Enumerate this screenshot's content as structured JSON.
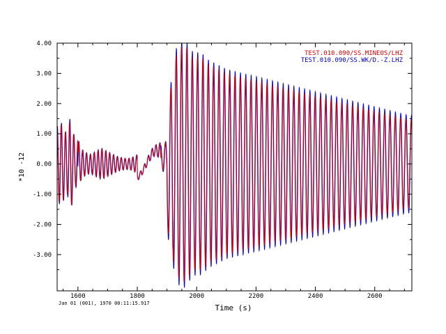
{
  "chart_data": {
    "type": "line",
    "title": "",
    "xlabel": "Time (s)",
    "ylabel": "*10 -12",
    "xlim": [
      1530,
      2725
    ],
    "ylim": [
      -4.2,
      4.0
    ],
    "x_ticks": [
      1600,
      1800,
      2000,
      2200,
      2400,
      2600
    ],
    "x_tick_labels": [
      "1600",
      "1800",
      "2000",
      "2200",
      "2400",
      "2600"
    ],
    "y_ticks": [
      4.0,
      3.0,
      2.0,
      1.0,
      0.0,
      -1.0,
      -2.0,
      -3.0
    ],
    "y_tick_labels": [
      "4.00",
      "3.00",
      "2.00",
      "1.00",
      "0.00",
      "-1.00",
      "-2.00",
      "-3.00"
    ],
    "grid": false,
    "legend_position": "top-right",
    "footer": "Jan 01 (001), 1970 00:11:15.917",
    "series": [
      {
        "name": "TEST.010.090/SS.MINEOS/LHZ",
        "color": "#dd0000",
        "waveform_description": "long-period surface wavetrain",
        "x": [
          1530,
          1540,
          1545,
          1550,
          1555,
          1560,
          1565,
          1570,
          1575,
          1580,
          1585,
          1590,
          1595,
          1600,
          1610,
          1620,
          1630,
          1640,
          1650,
          1660,
          1670,
          1680,
          1690,
          1700,
          1710,
          1720,
          1730,
          1740,
          1750,
          1760,
          1770,
          1780,
          1790,
          1800,
          1810,
          1820,
          1830,
          1840,
          1850,
          1860,
          1870,
          1880,
          1890,
          1900,
          1910,
          1920,
          1930,
          1940,
          1950,
          1960,
          1970,
          1980,
          1990,
          2000,
          2010,
          2020,
          2030,
          2040,
          2050,
          2060,
          2070,
          2080,
          2090,
          2100,
          2120,
          2140,
          2160,
          2180,
          2200,
          2220,
          2240,
          2260,
          2280,
          2300,
          2320,
          2340,
          2360,
          2380,
          2400,
          2420,
          2440,
          2460,
          2480,
          2500,
          2520,
          2540,
          2560,
          2580,
          2600,
          2620,
          2640,
          2660,
          2680,
          2700,
          2725
        ],
        "envelope": [
          1.2,
          1.3,
          1.3,
          1.2,
          1.1,
          1.0,
          1.0,
          1.3,
          1.5,
          1.3,
          1.0,
          0.8,
          0.7,
          0.8,
          0.5,
          0.4,
          0.35,
          0.3,
          0.35,
          0.4,
          0.45,
          0.5,
          0.45,
          0.4,
          0.35,
          0.3,
          0.25,
          0.22,
          0.2,
          0.18,
          0.18,
          0.2,
          0.25,
          0.3,
          0.3,
          0.3,
          0.35,
          0.4,
          0.45,
          0.5,
          0.6,
          1.0,
          1.5,
          2.0,
          2.6,
          3.2,
          3.6,
          3.8,
          3.9,
          3.9,
          3.8,
          3.6,
          3.5,
          3.5,
          3.5,
          3.5,
          3.4,
          3.3,
          3.25,
          3.2,
          3.15,
          3.1,
          3.05,
          3.0,
          2.95,
          2.9,
          2.85,
          2.8,
          2.75,
          2.7,
          2.65,
          2.6,
          2.55,
          2.5,
          2.45,
          2.4,
          2.35,
          2.3,
          2.25,
          2.2,
          2.15,
          2.1,
          2.05,
          2.0,
          1.95,
          1.9,
          1.85,
          1.8,
          1.75,
          1.7,
          1.65,
          1.6,
          1.55,
          1.5,
          1.45
        ],
        "period_s": 18,
        "phase_shift_s": 0
      },
      {
        "name": "TEST.010.090/SS.WK/D.-Z.LHZ",
        "color": "#0000cc",
        "waveform_description": "long-period surface wavetrain",
        "x": [
          1530,
          1540,
          1545,
          1550,
          1555,
          1560,
          1565,
          1570,
          1575,
          1580,
          1585,
          1590,
          1595,
          1600,
          1610,
          1620,
          1630,
          1640,
          1650,
          1660,
          1670,
          1680,
          1690,
          1700,
          1710,
          1720,
          1730,
          1740,
          1750,
          1760,
          1770,
          1780,
          1790,
          1800,
          1810,
          1820,
          1830,
          1840,
          1850,
          1860,
          1870,
          1880,
          1890,
          1900,
          1910,
          1920,
          1930,
          1940,
          1950,
          1960,
          1970,
          1980,
          1990,
          2000,
          2010,
          2020,
          2030,
          2040,
          2050,
          2060,
          2070,
          2080,
          2090,
          2100,
          2120,
          2140,
          2160,
          2180,
          2200,
          2220,
          2240,
          2260,
          2280,
          2300,
          2320,
          2340,
          2360,
          2380,
          2400,
          2420,
          2440,
          2460,
          2480,
          2500,
          2520,
          2540,
          2560,
          2580,
          2600,
          2620,
          2640,
          2660,
          2680,
          2700,
          2725
        ],
        "envelope": [
          1.25,
          1.35,
          1.35,
          1.25,
          1.15,
          1.05,
          1.05,
          1.35,
          1.6,
          1.35,
          1.05,
          0.85,
          0.75,
          0.85,
          0.55,
          0.42,
          0.37,
          0.32,
          0.37,
          0.42,
          0.48,
          0.52,
          0.47,
          0.42,
          0.37,
          0.32,
          0.27,
          0.23,
          0.21,
          0.19,
          0.19,
          0.21,
          0.26,
          0.31,
          0.31,
          0.31,
          0.36,
          0.42,
          0.47,
          0.52,
          0.62,
          1.05,
          1.6,
          2.1,
          2.75,
          3.35,
          3.8,
          4.0,
          4.1,
          4.1,
          4.0,
          3.8,
          3.7,
          3.7,
          3.7,
          3.65,
          3.55,
          3.45,
          3.4,
          3.35,
          3.3,
          3.25,
          3.2,
          3.15,
          3.1,
          3.05,
          3.0,
          2.95,
          2.9,
          2.85,
          2.8,
          2.75,
          2.7,
          2.65,
          2.6,
          2.55,
          2.5,
          2.45,
          2.4,
          2.35,
          2.3,
          2.25,
          2.2,
          2.15,
          2.1,
          2.05,
          2.0,
          1.95,
          1.9,
          1.85,
          1.8,
          1.75,
          1.7,
          1.65,
          1.6
        ],
        "period_s": 18,
        "phase_shift_s": 1.2
      }
    ]
  }
}
